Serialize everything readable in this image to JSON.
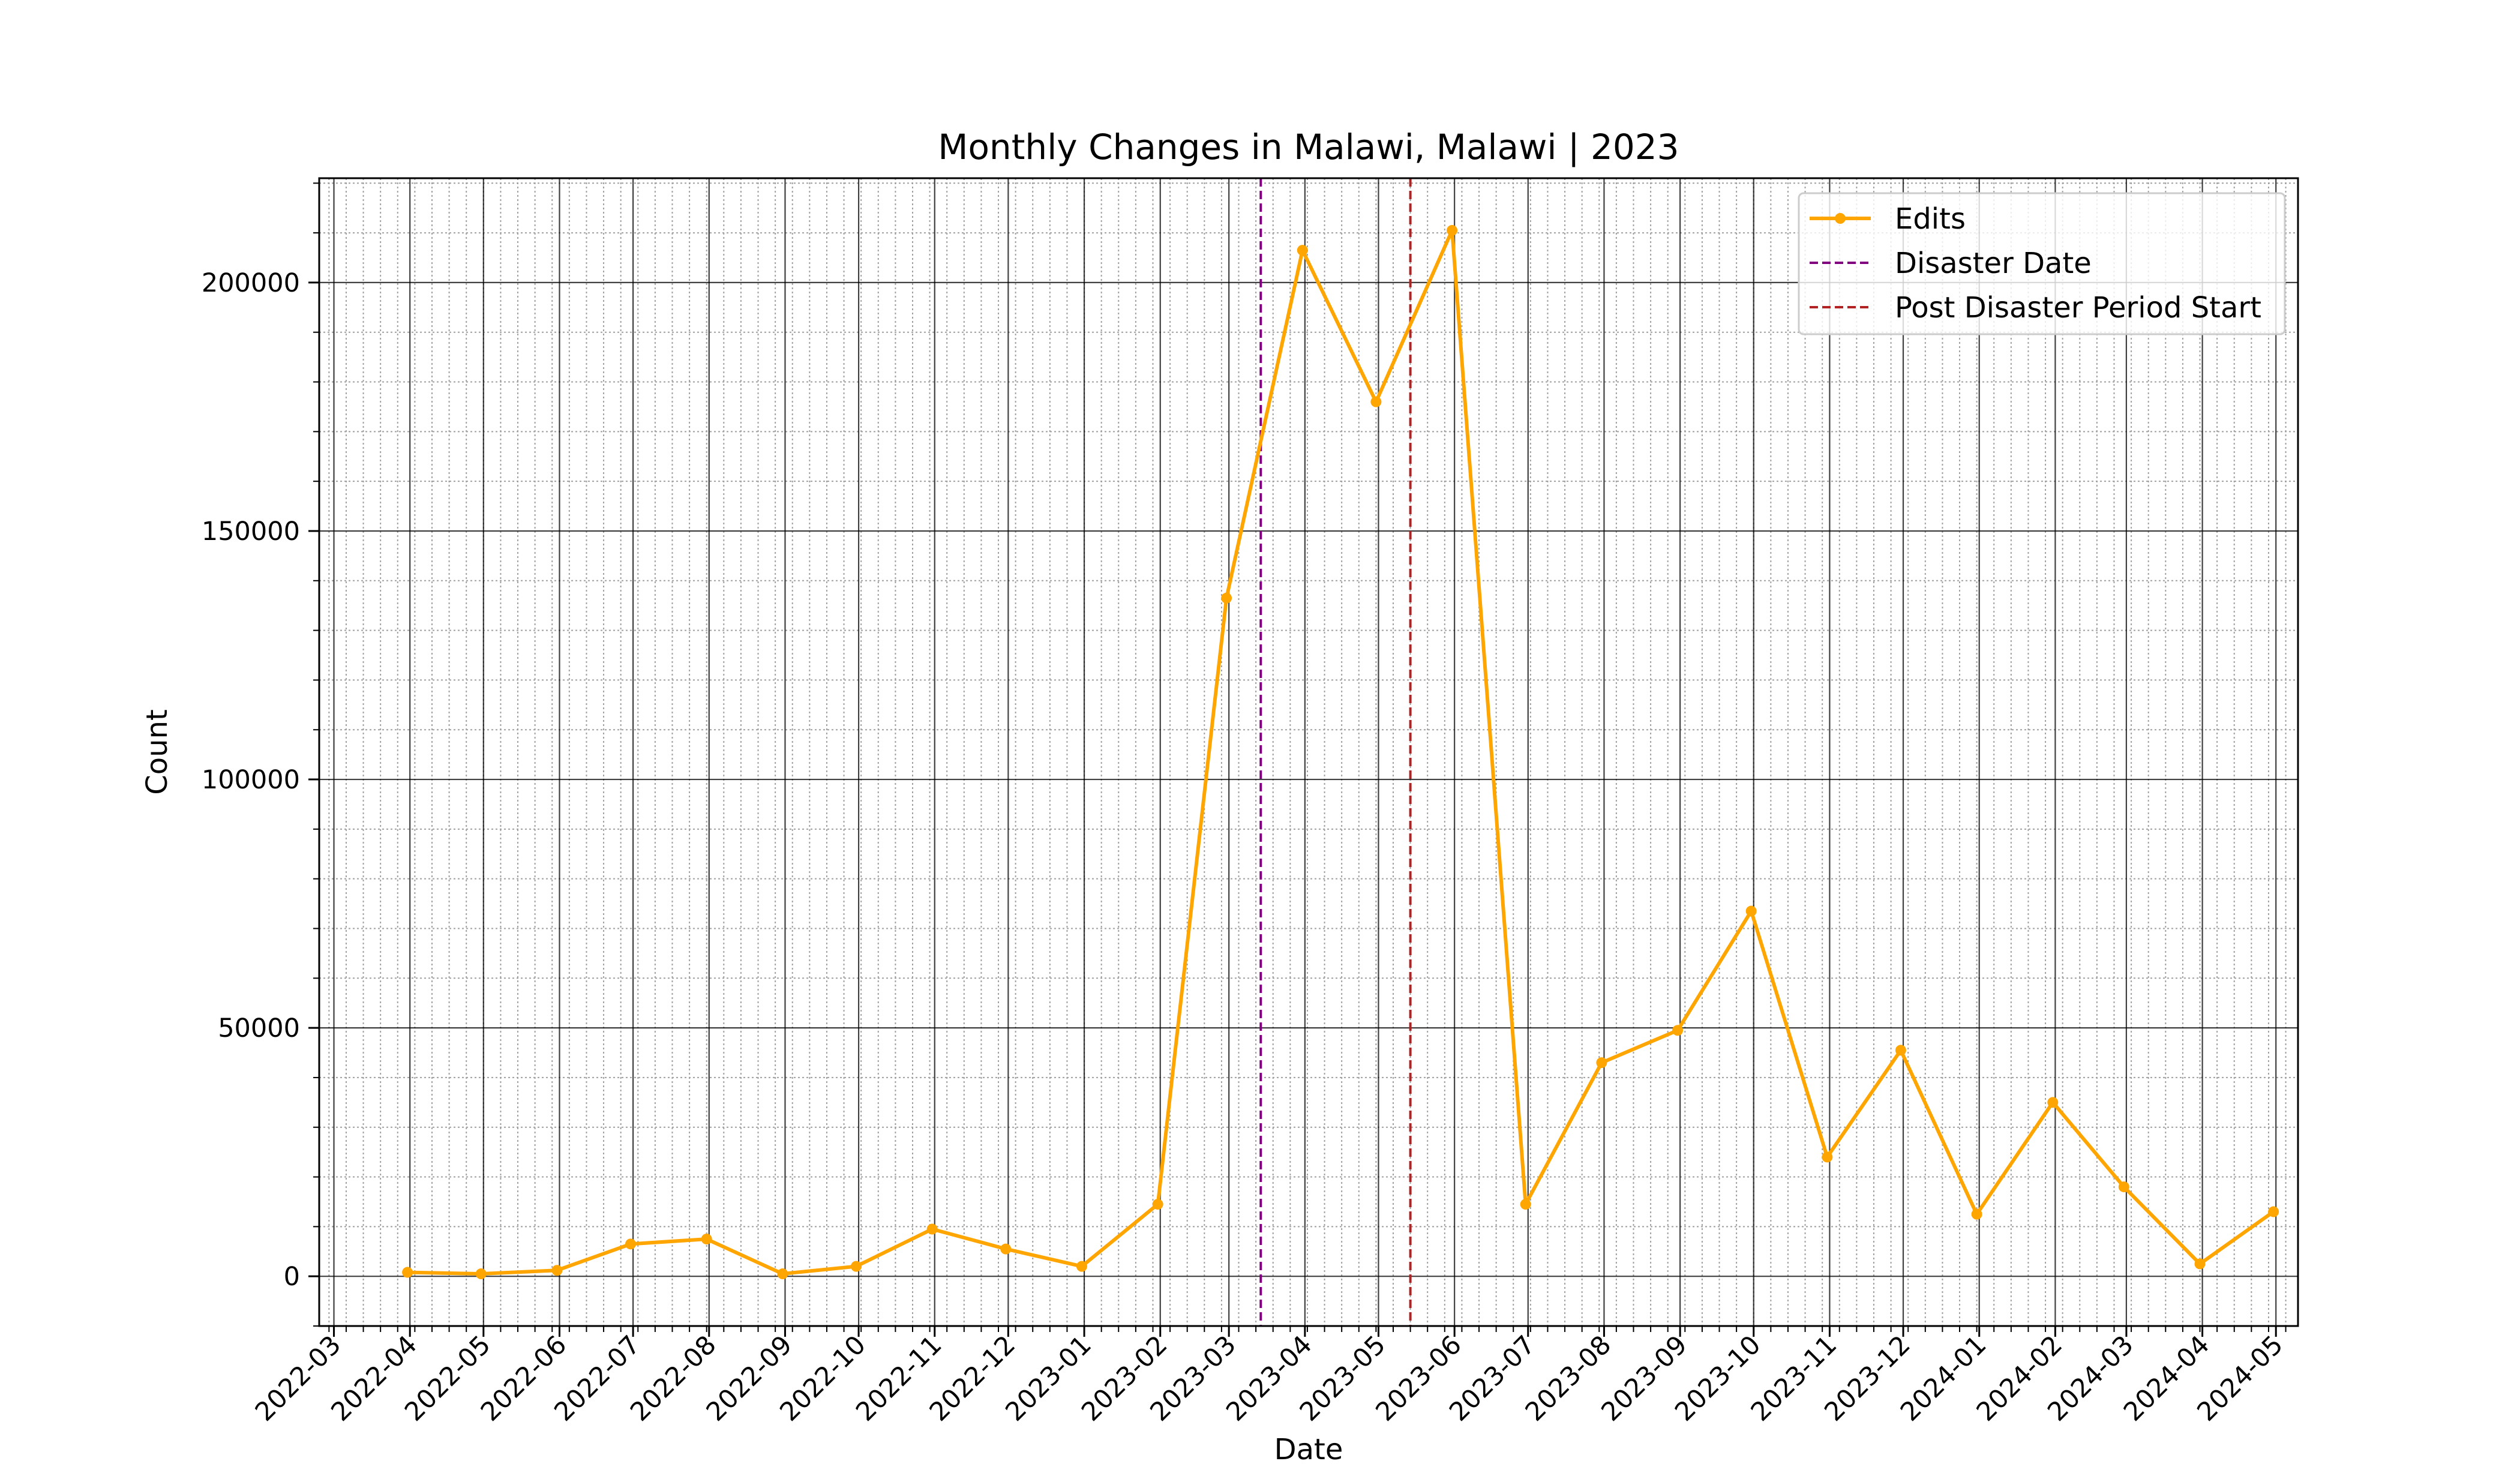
{
  "chart_data": {
    "type": "line",
    "title": "Monthly Changes in Malawi, Malawi | 2023",
    "xlabel": "Date",
    "ylabel": "Count",
    "x_ticks": [
      "2022-03",
      "2022-04",
      "2022-05",
      "2022-06",
      "2022-07",
      "2022-08",
      "2022-09",
      "2022-10",
      "2022-11",
      "2022-12",
      "2023-01",
      "2023-02",
      "2023-03",
      "2023-04",
      "2023-05",
      "2023-06",
      "2023-07",
      "2023-08",
      "2023-09",
      "2023-10",
      "2023-11",
      "2023-12",
      "2024-01",
      "2024-02",
      "2024-03",
      "2024-04",
      "2024-05"
    ],
    "y_ticks": [
      0,
      50000,
      100000,
      150000,
      200000
    ],
    "xlim": [
      "2022-02-23",
      "2024-05-10"
    ],
    "ylim": [
      -10000,
      221000
    ],
    "grid": "major solid, minor dotted",
    "legend_position": "top-right",
    "series": [
      {
        "name": "Edits",
        "color": "#ffa500",
        "marker": "dot",
        "x": [
          "2022-03-31",
          "2022-04-30",
          "2022-05-31",
          "2022-06-30",
          "2022-07-31",
          "2022-08-31",
          "2022-09-30",
          "2022-10-31",
          "2022-11-30",
          "2022-12-31",
          "2023-01-31",
          "2023-02-28",
          "2023-03-31",
          "2023-04-30",
          "2023-05-31",
          "2023-06-30",
          "2023-07-31",
          "2023-08-31",
          "2023-09-30",
          "2023-10-31",
          "2023-11-30",
          "2023-12-31",
          "2024-01-31",
          "2024-02-29",
          "2024-03-31",
          "2024-04-30"
        ],
        "values": [
          800,
          500,
          1200,
          6500,
          7500,
          500,
          2000,
          9500,
          5500,
          2000,
          14500,
          136500,
          206500,
          176000,
          210500,
          14500,
          43000,
          49500,
          73500,
          24000,
          45500,
          12500,
          35000,
          18000,
          2500,
          13000
        ]
      }
    ],
    "vlines": [
      {
        "name": "Disaster Date",
        "date": "2023-03-14",
        "color": "#800080",
        "style": "dashed"
      },
      {
        "name": "Post Disaster Period Start",
        "date": "2023-05-14",
        "color": "#b22222",
        "style": "dashed"
      }
    ]
  }
}
